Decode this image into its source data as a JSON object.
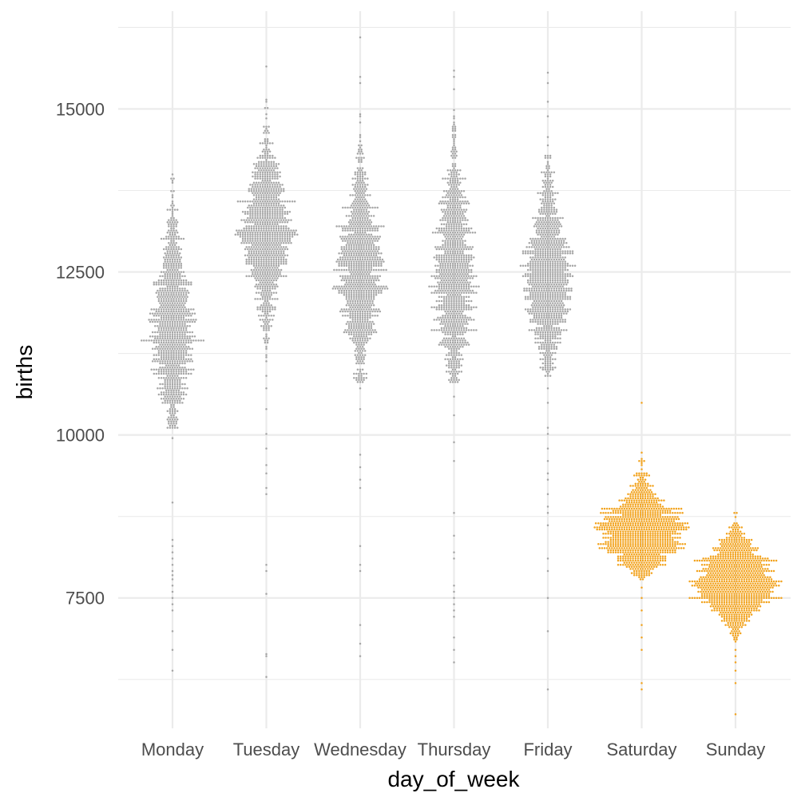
{
  "chart_data": {
    "type": "scatter",
    "subtype": "beeswarm",
    "title": "",
    "xlabel": "day_of_week",
    "ylabel": "births",
    "categories": [
      "Monday",
      "Tuesday",
      "Wednesday",
      "Thursday",
      "Friday",
      "Saturday",
      "Sunday"
    ],
    "yticks": [
      7500,
      10000,
      12500,
      15000
    ],
    "ytick_labels": [
      "7500",
      "10000",
      "12500",
      "15000"
    ],
    "ylim": [
      5500,
      16500
    ],
    "grid": true,
    "legend": "none",
    "colors": {
      "weekday": "#a6a6a6",
      "weekend": "#f2a31e",
      "grid": "#ebebeb"
    },
    "groups": [
      {
        "name": "Monday",
        "color": "weekday",
        "points_approx": 1000,
        "median": 11800,
        "main_range": [
          10100,
          14050
        ],
        "bulges": [
          [
            11650,
            1.0
          ],
          [
            12350,
            0.85
          ],
          [
            10800,
            0.6
          ]
        ],
        "outliers": [
          9950,
          8970,
          8400,
          8300,
          8200,
          8100,
          8000,
          7900,
          7850,
          7800,
          7700,
          7600,
          7500,
          7400,
          7300,
          7000,
          6700,
          6400
        ]
      },
      {
        "name": "Tuesday",
        "color": "weekday",
        "points_approx": 1040,
        "median": 12800,
        "main_range": [
          11100,
          15200
        ],
        "bulges": [
          [
            12850,
            1.0
          ],
          [
            13400,
            0.8
          ]
        ],
        "outliers": [
          10900,
          10700,
          10400,
          10000,
          9800,
          9550,
          9400,
          9200,
          9100,
          8000,
          7900,
          7550,
          6650,
          6600,
          6300,
          15650
        ]
      },
      {
        "name": "Wednesday",
        "color": "weekday",
        "points_approx": 1040,
        "median": 12500,
        "main_range": [
          10800,
          15000
        ],
        "bulges": [
          [
            12600,
            1.0
          ],
          [
            11900,
            0.8
          ],
          [
            13200,
            0.75
          ]
        ],
        "outliers": [
          10700,
          10400,
          9700,
          9500,
          9300,
          9200,
          8300,
          8000,
          7900,
          7100,
          6800,
          6600,
          15400,
          15500,
          16100
        ]
      },
      {
        "name": "Thursday",
        "color": "weekday",
        "points_approx": 1040,
        "median": 12500,
        "main_range": [
          10800,
          15000
        ],
        "bulges": [
          [
            12500,
            1.0
          ],
          [
            11800,
            0.75
          ],
          [
            13300,
            0.7
          ]
        ],
        "outliers": [
          10600,
          10300,
          9900,
          9600,
          8800,
          8450,
          8200,
          8100,
          7700,
          7600,
          7500,
          7400,
          7300,
          7200,
          6900,
          6700,
          6500,
          15300,
          15500,
          15600
        ]
      },
      {
        "name": "Friday",
        "color": "weekday",
        "points_approx": 1040,
        "median": 12400,
        "main_range": [
          10900,
          14700
        ],
        "bulges": [
          [
            12450,
            1.0
          ],
          [
            13000,
            0.75
          ],
          [
            11700,
            0.7
          ]
        ],
        "outliers": [
          10700,
          10500,
          10100,
          10000,
          9800,
          9600,
          9400,
          9300,
          9100,
          8900,
          8800,
          8600,
          8100,
          7900,
          7500,
          7000,
          6100,
          14900,
          15100,
          15400,
          15550
        ]
      },
      {
        "name": "Saturday",
        "color": "weekend",
        "points_approx": 1000,
        "median": 8650,
        "main_range": [
          7800,
          9950
        ],
        "bulges": [
          [
            8650,
            1.0
          ],
          [
            8400,
            0.7
          ]
        ],
        "outliers": [
          7650,
          7500,
          7300,
          7100,
          6900,
          6700,
          6200,
          6100,
          10500
        ]
      },
      {
        "name": "Sunday",
        "color": "weekend",
        "points_approx": 1000,
        "median": 7650,
        "main_range": [
          6800,
          8900
        ],
        "bulges": [
          [
            7600,
            1.0
          ],
          [
            8000,
            0.6
          ]
        ],
        "outliers": [
          6700,
          6600,
          6500,
          6400,
          6200,
          5700
        ]
      }
    ]
  }
}
